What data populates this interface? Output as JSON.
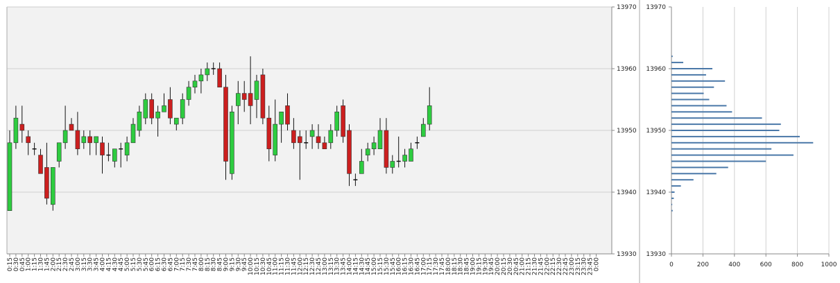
{
  "chart_data": [
    {
      "type": "candlestick",
      "title": "",
      "xlabel": "",
      "ylabel": "",
      "ylim": [
        13930,
        13970
      ],
      "yticks": [
        13930,
        13940,
        13950,
        13960,
        13970
      ],
      "grid": "horizontal",
      "colors": {
        "up": "#2ecc40",
        "down": "#cc1f1f",
        "plot_bg": "#f2f2f2",
        "wick": "#111111"
      },
      "x": [
        "0:15",
        "0:30",
        "0:45",
        "1:00",
        "1:15",
        "1:30",
        "1:45",
        "2:00",
        "2:15",
        "2:30",
        "2:45",
        "3:00",
        "3:15",
        "3:30",
        "3:45",
        "4:00",
        "4:15",
        "4:30",
        "4:45",
        "5:00",
        "5:15",
        "5:30",
        "5:45",
        "6:00",
        "6:15",
        "6:30",
        "6:45",
        "7:00",
        "7:15",
        "7:30",
        "7:45",
        "8:00",
        "8:15",
        "8:30",
        "8:45",
        "9:00",
        "9:15",
        "9:30",
        "9:45",
        "10:00",
        "10:15",
        "10:30",
        "10:45",
        "11:00",
        "11:15",
        "11:30",
        "11:45",
        "12:00",
        "12:15",
        "12:30",
        "12:45",
        "13:00",
        "13:15",
        "13:30",
        "13:45",
        "14:00",
        "14:15",
        "14:30",
        "14:45",
        "15:00",
        "15:15",
        "15:30",
        "15:45",
        "16:00",
        "16:15",
        "16:30",
        "16:45",
        "17:00",
        "17:15",
        "17:30",
        "17:45",
        "18:00",
        "18:15",
        "18:30",
        "18:45",
        "19:00",
        "19:15",
        "19:30",
        "19:45",
        "20:00",
        "20:15",
        "20:30",
        "20:45",
        "21:00",
        "21:15",
        "21:30",
        "21:45",
        "22:00",
        "22:15",
        "22:30",
        "22:45",
        "23:00",
        "23:15",
        "23:30",
        "23:45",
        "0:00"
      ],
      "candles": [
        {
          "x": "0:15",
          "o": 13937,
          "h": 13950,
          "l": 13937,
          "c": 13948
        },
        {
          "x": "0:30",
          "o": 13948,
          "h": 13954,
          "l": 13947,
          "c": 13952
        },
        {
          "x": "0:45",
          "o": 13951,
          "h": 13954,
          "l": 13948,
          "c": 13950
        },
        {
          "x": "1:00",
          "o": 13949,
          "h": 13950,
          "l": 13946,
          "c": 13948
        },
        {
          "x": "1:15",
          "o": 13947,
          "h": 13948,
          "l": 13946,
          "c": 13947
        },
        {
          "x": "1:30",
          "o": 13946,
          "h": 13947,
          "l": 13943,
          "c": 13943
        },
        {
          "x": "1:45",
          "o": 13944,
          "h": 13948,
          "l": 13938,
          "c": 13939
        },
        {
          "x": "2:00",
          "o": 13938,
          "h": 13944,
          "l": 13937,
          "c": 13944
        },
        {
          "x": "2:15",
          "o": 13945,
          "h": 13948,
          "l": 13944,
          "c": 13948
        },
        {
          "x": "2:30",
          "o": 13948,
          "h": 13954,
          "l": 13947,
          "c": 13950
        },
        {
          "x": "2:45",
          "o": 13951,
          "h": 13952,
          "l": 13950,
          "c": 13950
        },
        {
          "x": "3:00",
          "o": 13950,
          "h": 13953,
          "l": 13946,
          "c": 13947
        },
        {
          "x": "3:15",
          "o": 13948,
          "h": 13950,
          "l": 13947,
          "c": 13949
        },
        {
          "x": "3:30",
          "o": 13949,
          "h": 13950,
          "l": 13946,
          "c": 13948
        },
        {
          "x": "3:45",
          "o": 13948,
          "h": 13949,
          "l": 13946,
          "c": 13949
        },
        {
          "x": "4:00",
          "o": 13948,
          "h": 13949,
          "l": 13943,
          "c": 13946
        },
        {
          "x": "4:15",
          "o": 13946,
          "h": 13948,
          "l": 13945,
          "c": 13946
        },
        {
          "x": "4:30",
          "o": 13945,
          "h": 13947,
          "l": 13944,
          "c": 13947
        },
        {
          "x": "4:45",
          "o": 13947,
          "h": 13948,
          "l": 13944,
          "c": 13947
        },
        {
          "x": "5:00",
          "o": 13946,
          "h": 13949,
          "l": 13945,
          "c": 13948
        },
        {
          "x": "5:15",
          "o": 13948,
          "h": 13952,
          "l": 13948,
          "c": 13951
        },
        {
          "x": "5:30",
          "o": 13950,
          "h": 13954,
          "l": 13949,
          "c": 13953
        },
        {
          "x": "5:45",
          "o": 13952,
          "h": 13956,
          "l": 13951,
          "c": 13955
        },
        {
          "x": "6:00",
          "o": 13955,
          "h": 13956,
          "l": 13951,
          "c": 13952
        },
        {
          "x": "6:15",
          "o": 13952,
          "h": 13954,
          "l": 13949,
          "c": 13953
        },
        {
          "x": "6:30",
          "o": 13953,
          "h": 13956,
          "l": 13953,
          "c": 13954
        },
        {
          "x": "6:45",
          "o": 13955,
          "h": 13957,
          "l": 13951,
          "c": 13952
        },
        {
          "x": "7:00",
          "o": 13951,
          "h": 13952,
          "l": 13950,
          "c": 13952
        },
        {
          "x": "7:15",
          "o": 13952,
          "h": 13956,
          "l": 13951,
          "c": 13955
        },
        {
          "x": "7:30",
          "o": 13955,
          "h": 13958,
          "l": 13954,
          "c": 13957
        },
        {
          "x": "7:45",
          "o": 13957,
          "h": 13959,
          "l": 13956,
          "c": 13958
        },
        {
          "x": "8:00",
          "o": 13958,
          "h": 13960,
          "l": 13956,
          "c": 13959
        },
        {
          "x": "8:15",
          "o": 13959,
          "h": 13961,
          "l": 13958,
          "c": 13960
        },
        {
          "x": "8:30",
          "o": 13960,
          "h": 13961,
          "l": 13959,
          "c": 13960
        },
        {
          "x": "8:45",
          "o": 13960,
          "h": 13961,
          "l": 13957,
          "c": 13957
        },
        {
          "x": "9:00",
          "o": 13957,
          "h": 13959,
          "l": 13942,
          "c": 13945
        },
        {
          "x": "9:15",
          "o": 13943,
          "h": 13954,
          "l": 13942,
          "c": 13953
        },
        {
          "x": "9:30",
          "o": 13954,
          "h": 13958,
          "l": 13951,
          "c": 13956
        },
        {
          "x": "9:45",
          "o": 13956,
          "h": 13958,
          "l": 13953,
          "c": 13955
        },
        {
          "x": "10:00",
          "o": 13956,
          "h": 13962,
          "l": 13951,
          "c": 13954
        },
        {
          "x": "10:15",
          "o": 13955,
          "h": 13959,
          "l": 13952,
          "c": 13958
        },
        {
          "x": "10:30",
          "o": 13959,
          "h": 13960,
          "l": 13951,
          "c": 13952
        },
        {
          "x": "10:45",
          "o": 13952,
          "h": 13954,
          "l": 13945,
          "c": 13947
        },
        {
          "x": "11:00",
          "o": 13946,
          "h": 13955,
          "l": 13945,
          "c": 13951
        },
        {
          "x": "11:15",
          "o": 13951,
          "h": 13953,
          "l": 13948,
          "c": 13953
        },
        {
          "x": "11:30",
          "o": 13954,
          "h": 13956,
          "l": 13950,
          "c": 13951
        },
        {
          "x": "11:45",
          "o": 13950,
          "h": 13952,
          "l": 13947,
          "c": 13948
        },
        {
          "x": "12:00",
          "o": 13949,
          "h": 13950,
          "l": 13942,
          "c": 13948
        },
        {
          "x": "12:15",
          "o": 13948,
          "h": 13950,
          "l": 13947,
          "c": 13948
        },
        {
          "x": "12:30",
          "o": 13949,
          "h": 13951,
          "l": 13947,
          "c": 13950
        },
        {
          "x": "12:45",
          "o": 13949,
          "h": 13951,
          "l": 13947,
          "c": 13948
        },
        {
          "x": "13:00",
          "o": 13948,
          "h": 13949,
          "l": 13947,
          "c": 13947
        },
        {
          "x": "13:15",
          "o": 13948,
          "h": 13951,
          "l": 13947,
          "c": 13950
        },
        {
          "x": "13:30",
          "o": 13950,
          "h": 13954,
          "l": 13949,
          "c": 13953
        },
        {
          "x": "13:45",
          "o": 13954,
          "h": 13955,
          "l": 13948,
          "c": 13949
        },
        {
          "x": "14:00",
          "o": 13950,
          "h": 13951,
          "l": 13941,
          "c": 13943
        },
        {
          "x": "14:15",
          "o": 13942,
          "h": 13943,
          "l": 13941,
          "c": 13942
        },
        {
          "x": "14:30",
          "o": 13943,
          "h": 13947,
          "l": 13943,
          "c": 13945
        },
        {
          "x": "14:45",
          "o": 13946,
          "h": 13948,
          "l": 13945,
          "c": 13947
        },
        {
          "x": "15:00",
          "o": 13947,
          "h": 13949,
          "l": 13946,
          "c": 13948
        },
        {
          "x": "15:15",
          "o": 13947,
          "h": 13952,
          "l": 13947,
          "c": 13950
        },
        {
          "x": "15:30",
          "o": 13950,
          "h": 13952,
          "l": 13943,
          "c": 13944
        },
        {
          "x": "15:45",
          "o": 13944,
          "h": 13946,
          "l": 13943,
          "c": 13945
        },
        {
          "x": "16:00",
          "o": 13945,
          "h": 13949,
          "l": 13944,
          "c": 13945
        },
        {
          "x": "16:15",
          "o": 13945,
          "h": 13947,
          "l": 13944,
          "c": 13946
        },
        {
          "x": "16:30",
          "o": 13945,
          "h": 13948,
          "l": 13945,
          "c": 13947
        },
        {
          "x": "16:45",
          "o": 13948,
          "h": 13949,
          "l": 13947,
          "c": 13948
        },
        {
          "x": "17:00",
          "o": 13949,
          "h": 13952,
          "l": 13949,
          "c": 13951
        },
        {
          "x": "17:15",
          "o": 13951,
          "h": 13957,
          "l": 13950,
          "c": 13954
        }
      ]
    },
    {
      "type": "bar",
      "orientation": "horizontal",
      "title": "",
      "xlabel": "",
      "ylabel": "",
      "xlim": [
        0,
        1000
      ],
      "xticks": [
        0,
        200,
        400,
        600,
        800,
        1000
      ],
      "ylim": [
        13930,
        13970
      ],
      "yticks": [
        13930,
        13940,
        13950,
        13960,
        13970
      ],
      "grid": "vertical",
      "colors": {
        "bar": "#4a78a8"
      },
      "levels": [
        13962,
        13961,
        13960,
        13959,
        13958,
        13957,
        13956,
        13955,
        13954,
        13953,
        13952,
        13951,
        13950,
        13949,
        13948,
        13947,
        13946,
        13945,
        13944,
        13943,
        13942,
        13941,
        13940,
        13939,
        13938,
        13937
      ],
      "values": [
        8,
        75,
        260,
        220,
        340,
        270,
        205,
        240,
        350,
        385,
        575,
        695,
        685,
        815,
        900,
        635,
        775,
        600,
        360,
        285,
        140,
        60,
        20,
        15,
        5,
        8
      ]
    }
  ]
}
